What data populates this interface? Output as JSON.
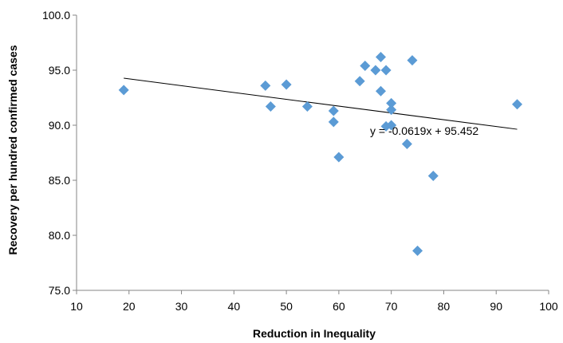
{
  "chart_data": {
    "type": "scatter",
    "xlabel": "Reduction in Inequality",
    "ylabel": "Recovery per hundred confirmed cases",
    "xlim": [
      10,
      100
    ],
    "ylim": [
      75,
      100
    ],
    "x_ticks": [
      "10",
      "20",
      "30",
      "40",
      "50",
      "60",
      "70",
      "80",
      "90",
      "100"
    ],
    "y_ticks": [
      "75.0",
      "80.0",
      "85.0",
      "90.0",
      "95.0",
      "100.0"
    ],
    "x_tick_values": [
      10,
      20,
      30,
      40,
      50,
      60,
      70,
      80,
      90,
      100
    ],
    "y_tick_values": [
      75,
      80,
      85,
      90,
      95,
      100
    ],
    "grid": false,
    "marker": "diamond",
    "marker_color": "#5B9BD5",
    "points": [
      {
        "x": 19,
        "y": 93.2
      },
      {
        "x": 46,
        "y": 93.6
      },
      {
        "x": 47,
        "y": 91.7
      },
      {
        "x": 50,
        "y": 93.7
      },
      {
        "x": 54,
        "y": 91.7
      },
      {
        "x": 59,
        "y": 91.3
      },
      {
        "x": 59,
        "y": 90.3
      },
      {
        "x": 60,
        "y": 87.1
      },
      {
        "x": 64,
        "y": 94.0
      },
      {
        "x": 65,
        "y": 95.4
      },
      {
        "x": 67,
        "y": 95.0
      },
      {
        "x": 68,
        "y": 96.2
      },
      {
        "x": 68,
        "y": 93.1
      },
      {
        "x": 69,
        "y": 95.0
      },
      {
        "x": 69,
        "y": 89.9
      },
      {
        "x": 70,
        "y": 92.0
      },
      {
        "x": 70,
        "y": 91.4
      },
      {
        "x": 70,
        "y": 90.0
      },
      {
        "x": 73,
        "y": 88.3
      },
      {
        "x": 74,
        "y": 95.9
      },
      {
        "x": 75,
        "y": 78.6
      },
      {
        "x": 78,
        "y": 85.4
      },
      {
        "x": 94,
        "y": 91.9
      }
    ],
    "trendline": {
      "slope": -0.0619,
      "intercept": 95.452,
      "x_range": [
        19,
        94
      ],
      "equation": "y = -0.0619x + 95.452"
    }
  }
}
